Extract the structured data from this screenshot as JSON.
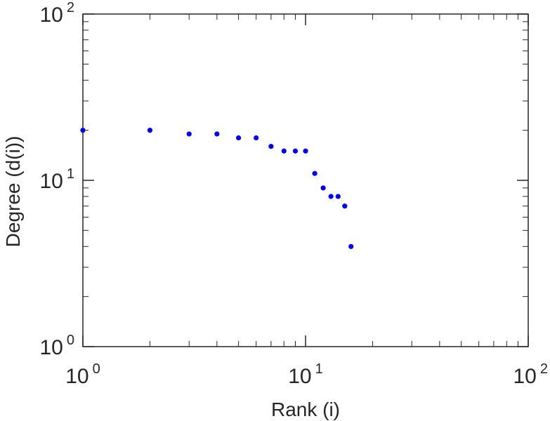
{
  "chart_data": {
    "type": "scatter",
    "title": "",
    "xlabel": "Rank (i)",
    "ylabel": "Degree (d(i))",
    "xscale": "log",
    "yscale": "log",
    "xlim": [
      1,
      100
    ],
    "ylim": [
      1,
      100
    ],
    "grid": false,
    "marker_color": "#0000ff",
    "axis_color": "#262626",
    "x_ticks": [
      {
        "value": 1,
        "base": "10",
        "exp": "0"
      },
      {
        "value": 10,
        "base": "10",
        "exp": "1"
      },
      {
        "value": 100,
        "base": "10",
        "exp": "2"
      }
    ],
    "y_ticks": [
      {
        "value": 1,
        "base": "10",
        "exp": "0"
      },
      {
        "value": 10,
        "base": "10",
        "exp": "1"
      },
      {
        "value": 100,
        "base": "10",
        "exp": "2"
      }
    ],
    "series": [
      {
        "points": [
          {
            "x": 1,
            "y": 20
          },
          {
            "x": 2,
            "y": 20
          },
          {
            "x": 3,
            "y": 19
          },
          {
            "x": 4,
            "y": 19
          },
          {
            "x": 5,
            "y": 18
          },
          {
            "x": 6,
            "y": 18
          },
          {
            "x": 7,
            "y": 16
          },
          {
            "x": 8,
            "y": 15
          },
          {
            "x": 9,
            "y": 15
          },
          {
            "x": 10,
            "y": 15
          },
          {
            "x": 11,
            "y": 11
          },
          {
            "x": 12,
            "y": 9
          },
          {
            "x": 13,
            "y": 8
          },
          {
            "x": 14,
            "y": 8
          },
          {
            "x": 15,
            "y": 7
          },
          {
            "x": 16,
            "y": 4
          }
        ]
      }
    ]
  }
}
